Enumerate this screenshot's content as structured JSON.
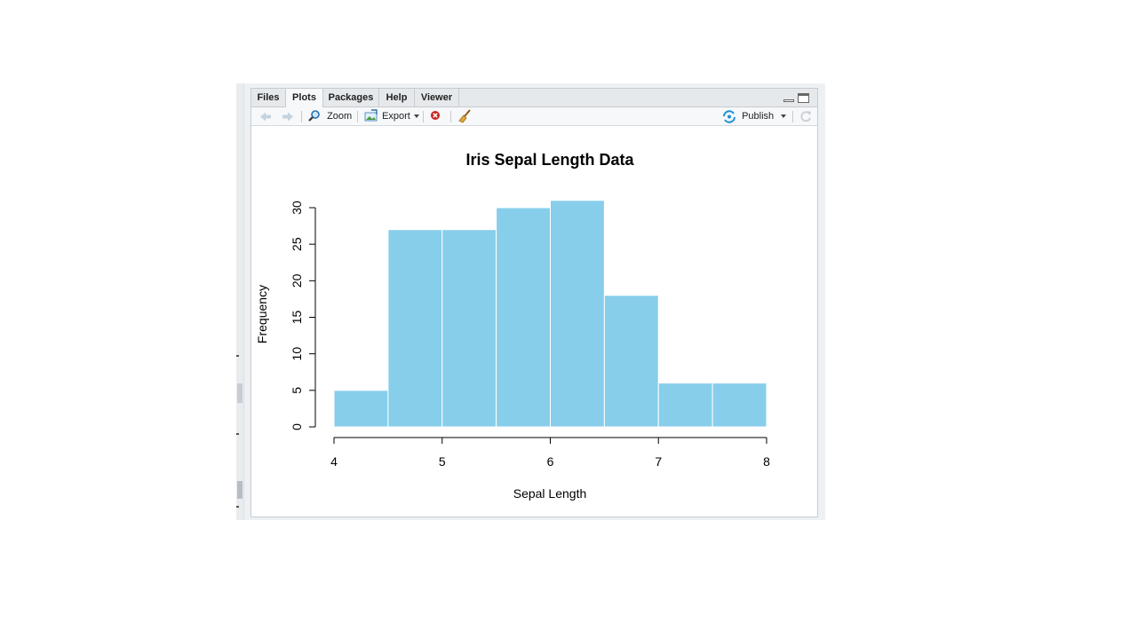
{
  "tabs": [
    {
      "label": "Files"
    },
    {
      "label": "Plots"
    },
    {
      "label": "Packages"
    },
    {
      "label": "Help"
    },
    {
      "label": "Viewer"
    }
  ],
  "active_tab": "Plots",
  "toolbar": {
    "back_icon": "arrow-left-icon",
    "forward_icon": "arrow-right-icon",
    "zoom_label": "Zoom",
    "export_label": "Export",
    "remove_icon": "close-circle-icon",
    "clear_icon": "broom-icon",
    "publish_label": "Publish",
    "refresh_icon": "refresh-icon"
  },
  "colors": {
    "bar_fill": "#87ceeb",
    "bar_stroke": "#ffffff",
    "publish_icon": "#1a8fd6",
    "remove_icon": "#cc2222"
  },
  "chart_data": {
    "type": "bar",
    "title": "Iris Sepal Length Data",
    "xlabel": "Sepal Length",
    "ylabel": "Frequency",
    "bins": [
      {
        "start": 4.0,
        "end": 4.5,
        "count": 5
      },
      {
        "start": 4.5,
        "end": 5.0,
        "count": 27
      },
      {
        "start": 5.0,
        "end": 5.5,
        "count": 27
      },
      {
        "start": 5.5,
        "end": 6.0,
        "count": 30
      },
      {
        "start": 6.0,
        "end": 6.5,
        "count": 31
      },
      {
        "start": 6.5,
        "end": 7.0,
        "count": 18
      },
      {
        "start": 7.0,
        "end": 7.5,
        "count": 6
      },
      {
        "start": 7.5,
        "end": 8.0,
        "count": 6
      }
    ],
    "xlim": [
      4,
      8
    ],
    "ylim": [
      0,
      30
    ],
    "x_ticks": [
      "4",
      "5",
      "6",
      "7",
      "8"
    ],
    "y_ticks": [
      "0",
      "5",
      "10",
      "15",
      "20",
      "25",
      "30"
    ],
    "grid": false,
    "legend": "none"
  }
}
